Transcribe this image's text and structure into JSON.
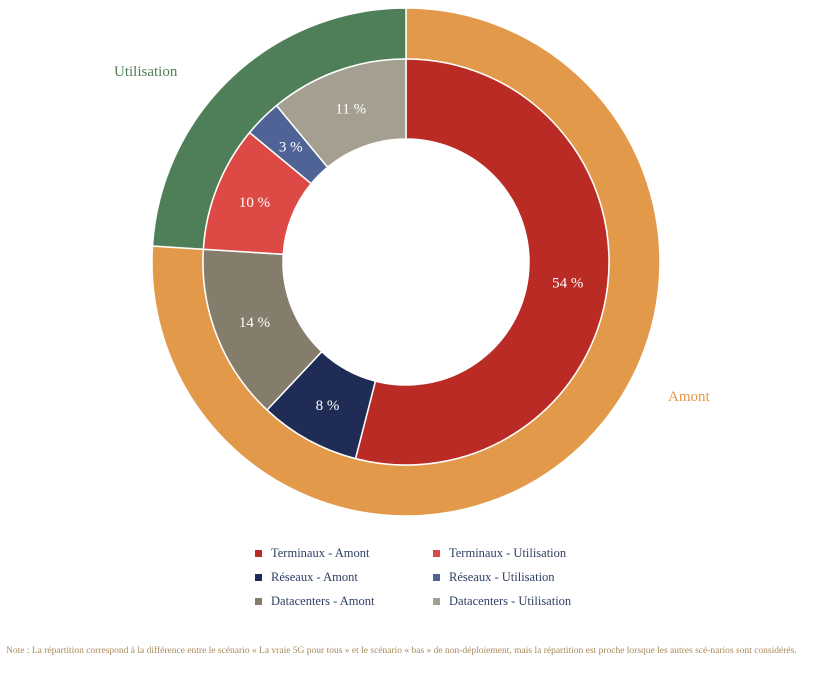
{
  "chart_data": {
    "type": "pie",
    "inner_ring": [
      {
        "name": "Terminaux - Amont",
        "value": 54,
        "label": "54 %",
        "color": "#b92b24"
      },
      {
        "name": "Réseaux - Amont",
        "value": 8,
        "label": "8 %",
        "color": "#1f2c55"
      },
      {
        "name": "Datacenters - Amont",
        "value": 14,
        "label": "14 %",
        "color": "#857d6c"
      },
      {
        "name": "Terminaux - Utilisation",
        "value": 10,
        "label": "10 %",
        "color": "#dd4a45"
      },
      {
        "name": "Réseaux - Utilisation",
        "value": 3,
        "label": "3 %",
        "color": "#4f6396"
      },
      {
        "name": "Datacenters - Utilisation",
        "value": 11,
        "label": "11 %",
        "color": "#a59f91"
      }
    ],
    "outer_ring": [
      {
        "name": "Amont",
        "value": 76,
        "color": "#e3994a"
      },
      {
        "name": "Utilisation",
        "value": 24,
        "color": "#4f7f59"
      }
    ],
    "legend": [
      {
        "label": "Terminaux - Amont",
        "color": "#b92b24"
      },
      {
        "label": "Terminaux - Utilisation",
        "color": "#dd4a45"
      },
      {
        "label": "Réseaux - Amont",
        "color": "#1f2c55"
      },
      {
        "label": "Réseaux - Utilisation",
        "color": "#4f6396"
      },
      {
        "label": "Datacenters - Amont",
        "color": "#857d6c"
      },
      {
        "label": "Datacenters - Utilisation",
        "color": "#a59f91"
      }
    ],
    "legend_position": "bottom"
  },
  "note": "Note : La répartition correspond à la différence entre le scénario « La vraie 5G pour tous » et le scénario « bas » de non-déploiement, mais la répartition est proche lorsque les autres scé-narios sont considérés."
}
